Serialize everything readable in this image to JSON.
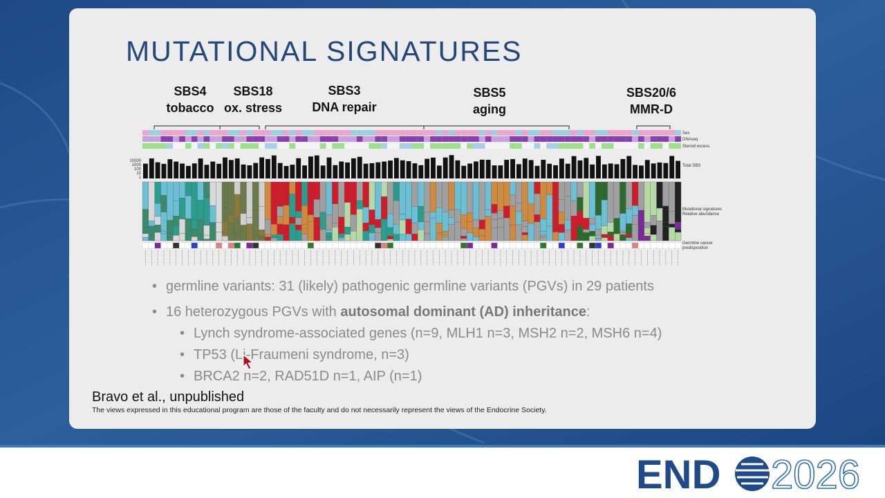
{
  "slide": {
    "title": "MUTATIONAL SIGNATURES",
    "figure": {
      "signatures": [
        {
          "name": "SBS4",
          "label": "tobacco"
        },
        {
          "name": "SBS18",
          "label": "ox. stress"
        },
        {
          "name": "SBS3",
          "label": "DNA repair"
        },
        {
          "name": "SBS5",
          "label": "aging"
        },
        {
          "name": "SBS20/6",
          "label": "MMR-D"
        }
      ],
      "total_sbs_ticks": [
        10000,
        1000,
        100,
        10,
        1
      ],
      "tracks": {
        "sex": "Sex",
        "dnaseq": "DNAseq",
        "steroid": "Steroid excess",
        "total": "Total SBS",
        "signatures": [
          "Mutational signatures",
          "Relative abundance"
        ],
        "germline": [
          "Germline cancer",
          "predisposition"
        ]
      }
    },
    "bullets": [
      {
        "text": "germline variants: 31 (likely) pathogenic germline variants (PGVs) in 29 patients"
      },
      {
        "text_parts": [
          "16 heterozygous PGVs with ",
          "autosomal dominant (AD) inheritance",
          ":"
        ],
        "sub_bullets": [
          "Lynch syndrome-associated genes (n=9, MLH1 n=3, MSH2 n=2, MSH6 n=4)",
          "TP53 (Li-Fraumeni syndrome, n=3)",
          "BRCA2 n=2, RAD51D n=1,  AIP (n=1)"
        ]
      }
    ],
    "citation": "Bravo et al., unpublished",
    "disclaimer": "The views expressed in this educational program are those of the faculty and do not necessarily represent the views of the Endocrine Society."
  },
  "logo": {
    "left": "END",
    "right": "2026"
  }
}
